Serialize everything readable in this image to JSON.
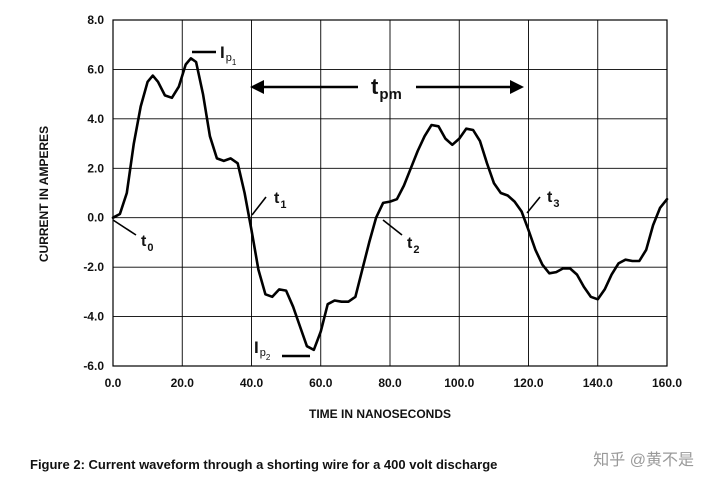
{
  "chart_data": {
    "type": "line",
    "title": "",
    "xlabel": "TIME IN NANOSECONDS",
    "ylabel": "CURRENT IN AMPERES",
    "xlim": [
      0,
      160
    ],
    "ylim": [
      -6,
      8
    ],
    "grid": true,
    "x_ticks": [
      "0.0",
      "20.0",
      "40.0",
      "60.0",
      "80.0",
      "100.0",
      "120.0",
      "140.0",
      "160.0"
    ],
    "y_ticks": [
      "8.0",
      "6.0",
      "4.0",
      "2.0",
      "0.0",
      "-2.0",
      "-4.0",
      "-6.0"
    ],
    "series": [
      {
        "name": "",
        "color": "#000000",
        "x": [
          0,
          2,
          4,
          6,
          8,
          10,
          11.5,
          13,
          15,
          17,
          19,
          21,
          22.5,
          24,
          26,
          28,
          30,
          32,
          34,
          36,
          38,
          40,
          42,
          44,
          46,
          48,
          50,
          52,
          54,
          56,
          58,
          60,
          62,
          64,
          66,
          68,
          70,
          72,
          74,
          76,
          78,
          80,
          82,
          84,
          86,
          88,
          90,
          92,
          94,
          96,
          98,
          100,
          102,
          104,
          106,
          108,
          110,
          112,
          114,
          116,
          118,
          120,
          122,
          124,
          126,
          128,
          130,
          132,
          134,
          136,
          138,
          140,
          142,
          144,
          146,
          148,
          150,
          152,
          154,
          156,
          158,
          160
        ],
        "values": [
          0.0,
          0.15,
          1.0,
          3.0,
          4.5,
          5.5,
          5.75,
          5.5,
          4.95,
          4.85,
          5.3,
          6.2,
          6.45,
          6.3,
          5.0,
          3.3,
          2.4,
          2.3,
          2.4,
          2.2,
          1.0,
          -0.5,
          -2.1,
          -3.1,
          -3.2,
          -2.9,
          -2.95,
          -3.6,
          -4.4,
          -5.2,
          -5.35,
          -4.6,
          -3.5,
          -3.35,
          -3.4,
          -3.4,
          -3.2,
          -2.1,
          -1.0,
          0.0,
          0.6,
          0.65,
          0.75,
          1.3,
          2.0,
          2.7,
          3.3,
          3.75,
          3.7,
          3.2,
          2.95,
          3.2,
          3.6,
          3.55,
          3.1,
          2.2,
          1.4,
          1.0,
          0.9,
          0.65,
          0.25,
          -0.5,
          -1.3,
          -1.9,
          -2.25,
          -2.2,
          -2.05,
          -2.05,
          -2.3,
          -2.8,
          -3.2,
          -3.3,
          -2.9,
          -2.3,
          -1.85,
          -1.7,
          -1.75,
          -1.75,
          -1.3,
          -0.3,
          0.4,
          0.75
        ]
      }
    ],
    "annotations": {
      "ip1": {
        "main": "I",
        "sub": "p",
        "subsub": "1"
      },
      "ip2": {
        "main": "I",
        "sub": "p",
        "subsub": "2"
      },
      "t0": {
        "main": "t",
        "sub": "0"
      },
      "t1": {
        "main": "t",
        "sub": "1"
      },
      "t2": {
        "main": "t",
        "sub": "2"
      },
      "t3": {
        "main": "t",
        "sub": "3"
      },
      "tpm": {
        "main": "t",
        "sub": "pm"
      }
    }
  },
  "caption": "Figure 2:  Current waveform through a shorting wire for a 400 volt discharge",
  "watermark": "知乎 @黄不是"
}
